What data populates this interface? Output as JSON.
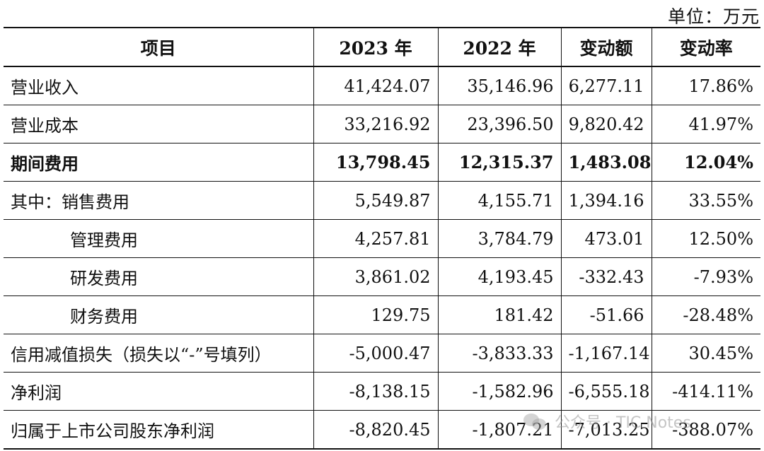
{
  "unit": "单位：万元",
  "headers": [
    "项目",
    "2023 年",
    "2022 年",
    "变动额",
    "变动率"
  ],
  "rows": [
    {
      "item": "营业收入",
      "y2023": "41,424.07",
      "y2022": "35,146.96",
      "change": "6,277.11",
      "rate": "17.86%"
    },
    {
      "item": "营业成本",
      "y2023": "33,216.92",
      "y2022": "23,396.50",
      "change": "9,820.42",
      "rate": "41.97%"
    },
    {
      "item": "期间费用",
      "y2023": "13,798.45",
      "y2022": "12,315.37",
      "change": "1,483.08",
      "rate": "12.04%"
    },
    {
      "item": "其中：销售费用",
      "y2023": "5,549.87",
      "y2022": "4,155.71",
      "change": "1,394.16",
      "rate": "33.55%"
    },
    {
      "item": "管理费用",
      "y2023": "4,257.81",
      "y2022": "3,784.79",
      "change": "473.01",
      "rate": "12.50%"
    },
    {
      "item": "研发费用",
      "y2023": "3,861.02",
      "y2022": "4,193.45",
      "change": "-332.43",
      "rate": "-7.93%"
    },
    {
      "item": "财务费用",
      "y2023": "129.75",
      "y2022": "181.42",
      "change": "-51.66",
      "rate": "-28.48%"
    },
    {
      "item": "信用减值损失（损失以“-”号填列）",
      "y2023": "-5,000.47",
      "y2022": "-3,833.33",
      "change": "-1,167.14",
      "rate": "30.45%"
    },
    {
      "item": "净利润",
      "y2023": "-8,138.15",
      "y2022": "-1,582.96",
      "change": "-6,555.18",
      "rate": "-414.11%"
    },
    {
      "item": "归属于上市公司股东净利润",
      "y2023": "-8,820.45",
      "y2022": "-1,807.21",
      "change": "-7,013.25",
      "rate": "-388.07%"
    }
  ],
  "watermark": "公众号 · TIC Notes",
  "watermark_icon": "wechat-icon"
}
